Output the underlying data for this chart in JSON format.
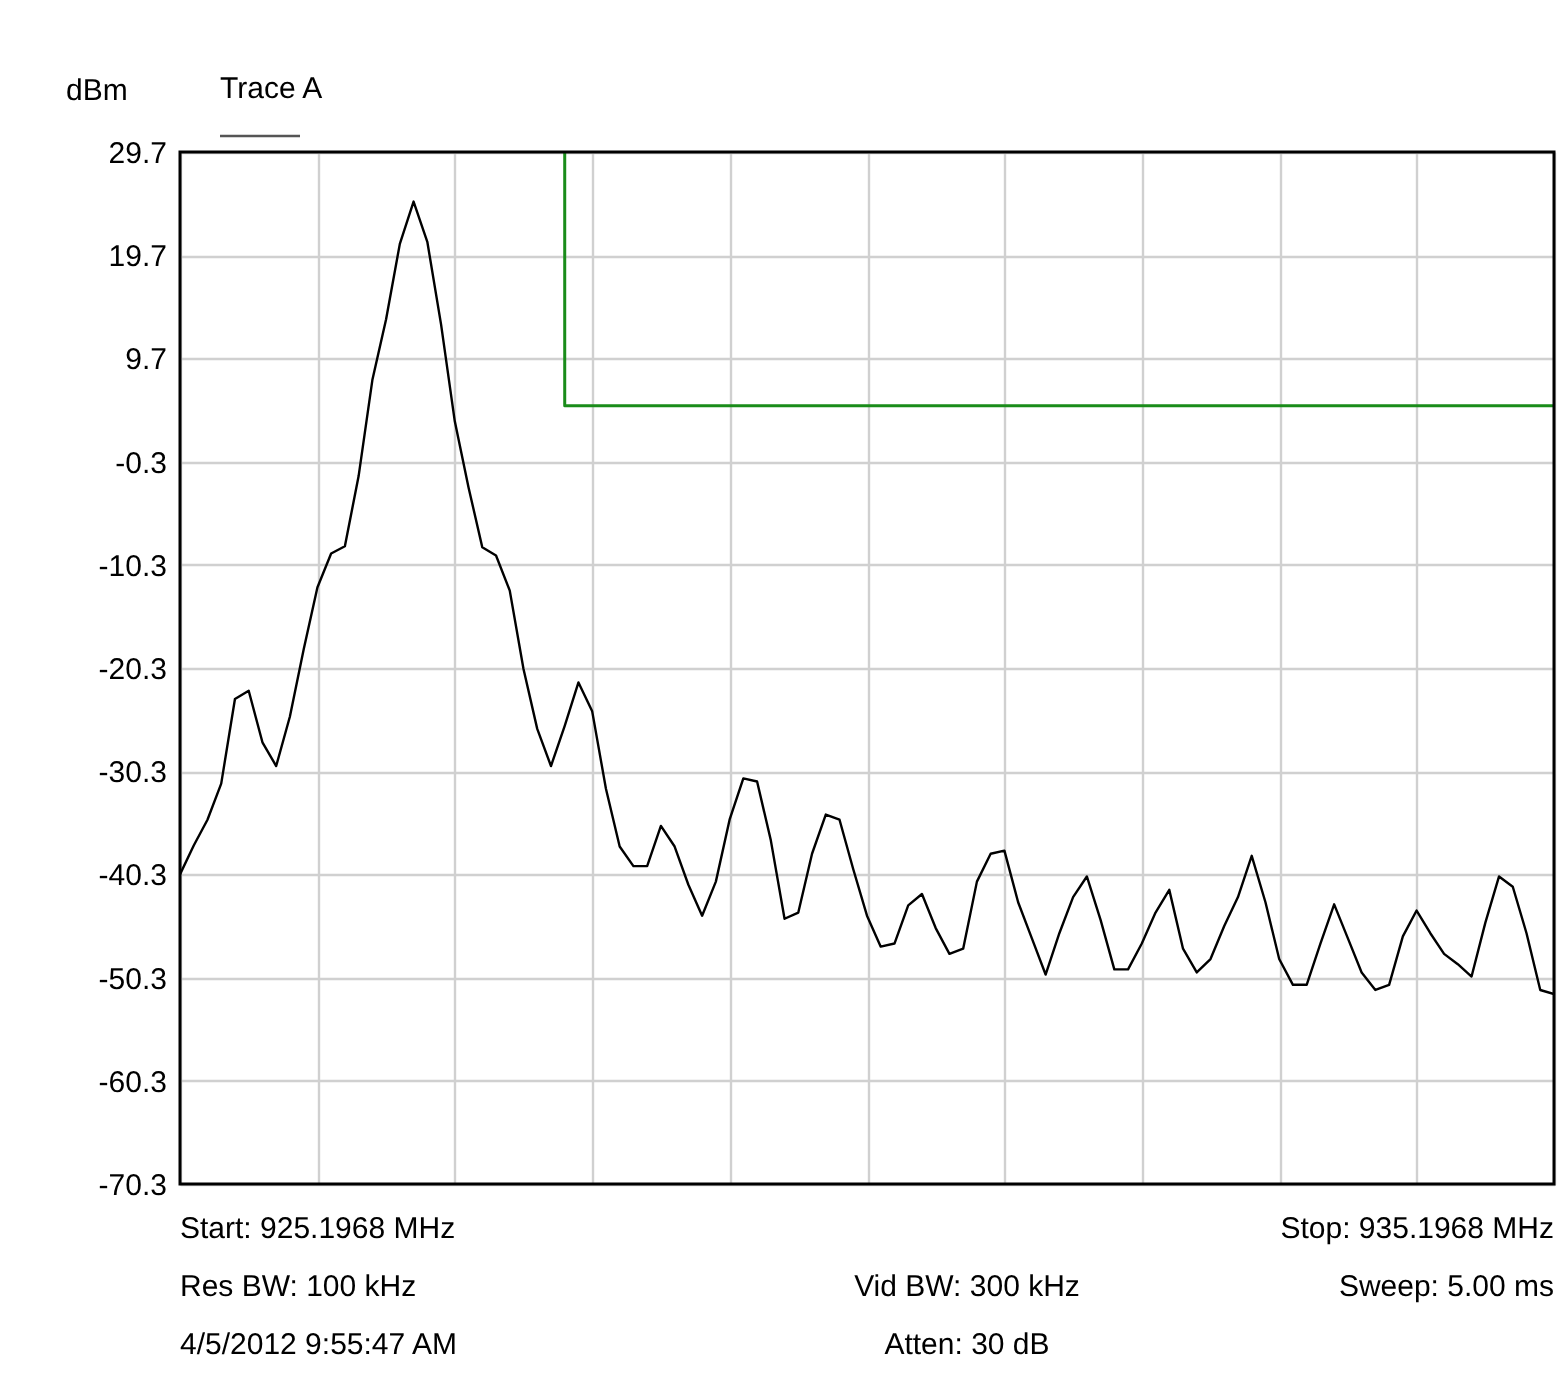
{
  "chart_data": {
    "type": "line",
    "ylabel": "dBm",
    "categories": [
      null,
      null,
      null,
      null,
      null,
      null,
      null,
      null,
      null,
      null,
      null,
      null,
      null,
      null,
      null,
      null,
      null,
      null,
      null,
      null,
      null,
      null,
      null,
      null,
      null,
      null,
      null,
      null,
      null,
      null,
      null,
      null,
      null,
      null,
      null,
      null,
      null,
      null,
      null,
      null,
      null,
      null,
      null,
      null,
      null,
      null,
      null,
      null,
      null,
      null,
      null,
      null,
      null,
      null,
      null,
      null,
      null,
      null,
      null,
      null,
      null,
      null,
      null,
      null,
      null,
      null,
      null,
      null,
      null,
      null,
      null,
      null,
      null,
      null,
      null,
      null,
      null,
      null,
      null,
      null,
      null,
      null,
      null,
      null,
      null,
      null,
      null,
      null,
      null,
      null,
      null,
      null,
      null,
      null,
      null,
      null,
      null,
      null,
      null,
      null,
      null
    ],
    "ylim": [
      -70.3,
      29.7
    ],
    "yticks": [
      29.7,
      19.7,
      9.7,
      -0.3,
      -10.3,
      -20.3,
      -30.3,
      -40.3,
      -50.3,
      -60.3,
      -70.3
    ],
    "tick_labels": "y",
    "grid": true,
    "line_style": "solid",
    "series": [
      {
        "name": "Trace A",
        "color": "#000000",
        "values": [
          -40.3,
          -37.5,
          -35.0,
          -31.5,
          -23.3,
          -22.5,
          -27.5,
          -29.8,
          -25.0,
          -18.5,
          -12.5,
          -9.2,
          -8.5,
          -1.7,
          7.6,
          13.5,
          20.8,
          24.9,
          21.0,
          13.0,
          3.6,
          -2.8,
          -8.6,
          -9.4,
          -12.8,
          -20.4,
          -26.2,
          -29.8,
          -25.9,
          -21.7,
          -24.5,
          -32.0,
          -37.6,
          -39.5,
          -39.5,
          -35.6,
          -37.6,
          -41.3,
          -44.3,
          -41.0,
          -35.0,
          -31.0,
          -31.3,
          -37.0,
          -44.6,
          -44.0,
          -38.3,
          -34.5,
          -35.0,
          -39.8,
          -44.3,
          -47.3,
          -47.0,
          -43.3,
          -42.2,
          -45.5,
          -48.0,
          -47.5,
          -41.0,
          -38.3,
          -38.0,
          -43.0,
          -46.5,
          -50.0,
          -46.0,
          -42.5,
          -40.5,
          -44.7,
          -49.5,
          -49.5,
          -47.0,
          -44.0,
          -41.8,
          -47.5,
          -49.8,
          -48.5,
          -45.3,
          -42.5,
          -38.5,
          -43.0,
          -48.5,
          -51.0,
          -51.0,
          -47.0,
          -43.2,
          -46.5,
          -49.8,
          -51.5,
          -51.0,
          -46.3,
          -43.8,
          -46.0,
          -48.0,
          -49.0,
          -50.2,
          -45.0,
          -40.5,
          -41.5,
          -46.0,
          -51.5,
          -51.9
        ]
      },
      {
        "color": "#1a8c1a",
        "type": "step",
        "values": [
          null,
          null,
          null,
          null,
          null,
          null,
          null,
          null,
          null,
          null,
          null,
          null,
          null,
          null,
          null,
          null,
          null,
          null,
          null,
          null,
          null,
          null,
          null,
          null,
          null,
          null,
          null,
          null,
          29.7,
          5.1,
          5.1,
          5.1,
          5.1,
          5.1,
          5.1,
          5.1,
          5.1,
          5.1,
          5.1,
          5.1,
          5.1,
          5.1,
          5.1,
          5.1,
          5.1,
          5.1,
          5.1,
          5.1,
          5.1,
          5.1,
          5.1,
          5.1,
          5.1,
          5.1,
          5.1,
          5.1,
          5.1,
          5.1,
          5.1,
          5.1,
          5.1,
          5.1,
          5.1,
          5.1,
          5.1,
          5.1,
          5.1,
          5.1,
          5.1,
          5.1,
          5.1,
          5.1,
          5.1,
          5.1,
          5.1,
          5.1,
          5.1,
          5.1,
          5.1,
          5.1,
          5.1,
          5.1,
          5.1,
          5.1,
          5.1,
          5.1,
          5.1,
          5.1,
          5.1,
          5.1,
          5.1,
          5.1,
          5.1,
          5.1,
          5.1,
          5.1,
          5.1,
          5.1,
          5.1,
          5.1,
          5.1
        ]
      }
    ],
    "annotations": [
      "Start: 925.1968 MHz",
      "Stop: 935.1968 MHz",
      "Res BW: 100 kHz",
      "Vid BW: 300 kHz",
      "Sweep: 5.00 ms",
      "4/5/2012 9:55:47 AM",
      "Atten: 30 dB"
    ]
  }
}
